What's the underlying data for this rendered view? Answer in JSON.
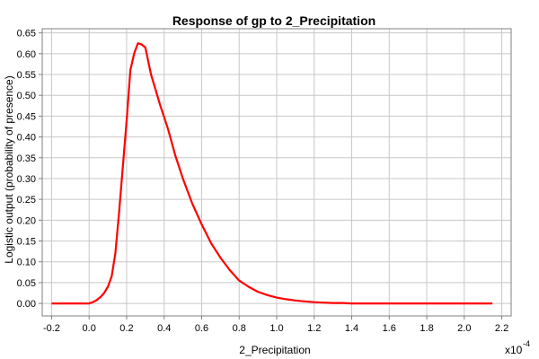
{
  "chart_data": {
    "type": "line",
    "title": "Response of gp to 2_Precipitation",
    "xlabel": "2_Precipitation",
    "ylabel": "Logistic output (probability of presence)",
    "x_multiplier": "x10",
    "x_multiplier_exponent": "-4",
    "xlim": [
      -0.25,
      2.25
    ],
    "ylim": [
      -0.03,
      0.66
    ],
    "xticks": [
      "-0.2",
      "0.0",
      "0.2",
      "0.4",
      "0.6",
      "0.8",
      "1.0",
      "1.2",
      "1.4",
      "1.6",
      "1.8",
      "2.0",
      "2.2"
    ],
    "yticks": [
      "0.00",
      "0.05",
      "0.10",
      "0.15",
      "0.20",
      "0.25",
      "0.30",
      "0.35",
      "0.40",
      "0.45",
      "0.50",
      "0.55",
      "0.60",
      "0.65"
    ],
    "grid": true,
    "line_color": "#ff0000",
    "series": [
      {
        "x": [
          -0.2,
          -0.1,
          0.0,
          0.02,
          0.04,
          0.06,
          0.08,
          0.1,
          0.12,
          0.14,
          0.16,
          0.18,
          0.2,
          0.22,
          0.24,
          0.26,
          0.28,
          0.3,
          0.33,
          0.35,
          0.38,
          0.42,
          0.46,
          0.5,
          0.55,
          0.6,
          0.65,
          0.7,
          0.75,
          0.8,
          0.85,
          0.9,
          0.95,
          1.0,
          1.05,
          1.1,
          1.15,
          1.2,
          1.25,
          1.3,
          1.35,
          1.4,
          1.6,
          1.8,
          2.0,
          2.15
        ],
        "y": [
          0.0,
          0.0,
          0.0,
          0.003,
          0.008,
          0.015,
          0.025,
          0.04,
          0.065,
          0.12,
          0.22,
          0.33,
          0.44,
          0.56,
          0.6,
          0.625,
          0.622,
          0.615,
          0.55,
          0.52,
          0.475,
          0.42,
          0.355,
          0.3,
          0.24,
          0.19,
          0.145,
          0.11,
          0.08,
          0.055,
          0.04,
          0.028,
          0.02,
          0.014,
          0.01,
          0.007,
          0.005,
          0.003,
          0.002,
          0.001,
          0.001,
          0.0,
          0.0,
          0.0,
          0.0,
          0.0
        ]
      }
    ]
  }
}
